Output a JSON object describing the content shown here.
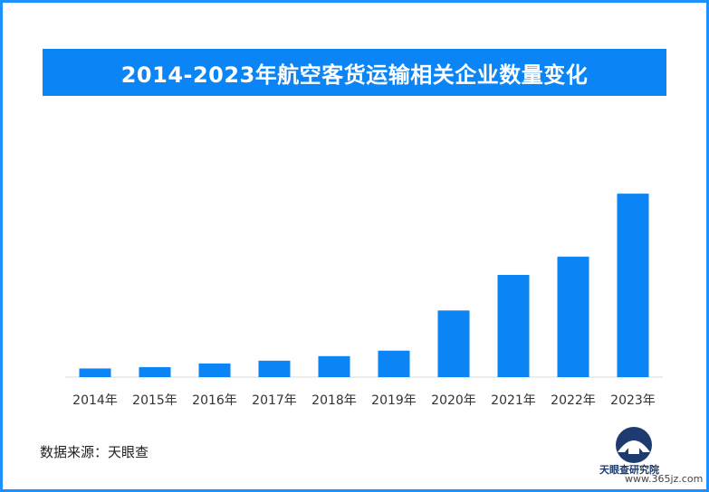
{
  "chart_data": {
    "type": "bar",
    "title": "2014-2023年航空客货运输相关企业数量变化",
    "categories": [
      "2014年",
      "2015年",
      "2016年",
      "2017年",
      "2018年",
      "2019年",
      "2020年",
      "2021年",
      "2022年",
      "2023年"
    ],
    "values": [
      9.5,
      11,
      15,
      18,
      23,
      29,
      73,
      112,
      132,
      201
    ],
    "ylim": [
      0,
      215
    ],
    "grid": false,
    "bar_color": "#0b84f5"
  },
  "source": "数据来源：天眼查",
  "logo": {
    "text": "天眼查研究院",
    "icon": "tianyancha-logo"
  },
  "watermark": "www.365jz.com"
}
